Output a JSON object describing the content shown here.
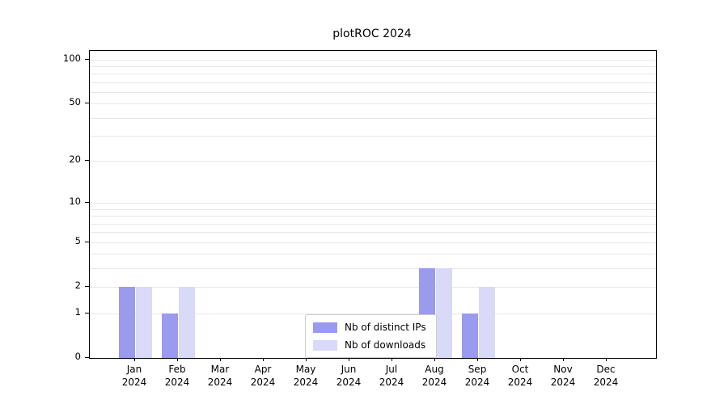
{
  "chart_data": {
    "type": "bar",
    "title": "plotROC 2024",
    "categories": [
      "Jan 2024",
      "Feb 2024",
      "Mar 2024",
      "Apr 2024",
      "May 2024",
      "Jun 2024",
      "Jul 2024",
      "Aug 2024",
      "Sep 2024",
      "Oct 2024",
      "Nov 2024",
      "Dec 2024"
    ],
    "series": [
      {
        "name": "Nb of distinct IPs",
        "color": "#9a9aef",
        "values": [
          2,
          1,
          0,
          0,
          0,
          0,
          0,
          3,
          1,
          0,
          0,
          0
        ]
      },
      {
        "name": "Nb of downloads",
        "color": "#d9d9f8",
        "values": [
          2,
          2,
          0,
          0,
          0,
          0,
          0,
          3,
          2,
          0,
          0,
          0
        ]
      }
    ],
    "y_ticks": [
      0,
      1,
      2,
      5,
      10,
      20,
      50,
      100
    ],
    "y_scale": "log1p",
    "ylim": [
      0,
      115
    ],
    "minor_gridlines": [
      1,
      2,
      3,
      4,
      5,
      6,
      7,
      8,
      9,
      10,
      20,
      30,
      40,
      50,
      60,
      70,
      80,
      90,
      100
    ],
    "grid": "horizontal",
    "legend": {
      "position": "lower center",
      "entries": [
        "Nb of distinct IPs",
        "Nb of downloads"
      ]
    }
  }
}
